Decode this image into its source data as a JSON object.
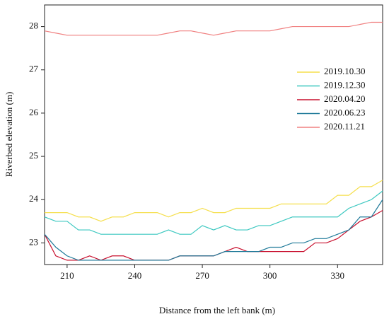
{
  "chart_data": {
    "type": "line",
    "x_label": "Distance from the left bank (m)",
    "y_label": "Riverbed elevation (m)",
    "x": [
      200,
      205,
      210,
      215,
      220,
      225,
      230,
      235,
      240,
      245,
      250,
      255,
      260,
      265,
      270,
      275,
      280,
      285,
      290,
      295,
      300,
      305,
      310,
      315,
      320,
      325,
      330,
      335,
      340,
      345,
      350
    ],
    "series": [
      {
        "name": "2019.10.30",
        "color": "#f5df4d",
        "values": [
          23.7,
          23.7,
          23.7,
          23.6,
          23.6,
          23.5,
          23.6,
          23.6,
          23.7,
          23.7,
          23.7,
          23.6,
          23.7,
          23.7,
          23.8,
          23.7,
          23.7,
          23.8,
          23.8,
          23.8,
          23.8,
          23.9,
          23.9,
          23.9,
          23.9,
          23.9,
          24.1,
          24.1,
          24.3,
          24.3,
          24.45
        ]
      },
      {
        "name": "2019.12.30",
        "color": "#3cc8c0",
        "values": [
          23.6,
          23.5,
          23.5,
          23.3,
          23.3,
          23.2,
          23.2,
          23.2,
          23.2,
          23.2,
          23.2,
          23.3,
          23.2,
          23.2,
          23.4,
          23.3,
          23.4,
          23.3,
          23.3,
          23.4,
          23.4,
          23.5,
          23.6,
          23.6,
          23.6,
          23.6,
          23.6,
          23.8,
          23.9,
          24.0,
          24.2
        ]
      },
      {
        "name": "2020.04.20",
        "color": "#c8102e",
        "values": [
          23.2,
          22.7,
          22.6,
          22.6,
          22.7,
          22.6,
          22.7,
          22.7,
          22.6,
          22.6,
          22.6,
          22.6,
          22.7,
          22.7,
          22.7,
          22.7,
          22.8,
          22.9,
          22.8,
          22.8,
          22.8,
          22.8,
          22.8,
          22.8,
          23.0,
          23.0,
          23.1,
          23.3,
          23.5,
          23.6,
          23.75
        ]
      },
      {
        "name": "2020.06.23",
        "color": "#1f7a99",
        "values": [
          23.2,
          22.9,
          22.7,
          22.6,
          22.6,
          22.6,
          22.6,
          22.6,
          22.6,
          22.6,
          22.6,
          22.6,
          22.7,
          22.7,
          22.7,
          22.7,
          22.8,
          22.8,
          22.8,
          22.8,
          22.9,
          22.9,
          23.0,
          23.0,
          23.1,
          23.1,
          23.2,
          23.3,
          23.6,
          23.6,
          24.0
        ]
      },
      {
        "name": "2020.11.21",
        "color": "#f08080",
        "values": [
          27.9,
          27.85,
          27.8,
          27.8,
          27.8,
          27.8,
          27.8,
          27.8,
          27.8,
          27.8,
          27.8,
          27.85,
          27.9,
          27.9,
          27.85,
          27.8,
          27.85,
          27.9,
          27.9,
          27.9,
          27.9,
          27.95,
          28.0,
          28.0,
          28.0,
          28.0,
          28.0,
          28.0,
          28.05,
          28.1,
          28.1
        ]
      }
    ],
    "xlim": [
      200,
      350
    ],
    "xticks": [
      210,
      240,
      270,
      300,
      330
    ],
    "ylim": [
      22.5,
      28.5
    ],
    "yticks": [
      23,
      24,
      25,
      26,
      27,
      28
    ],
    "legend": "right"
  }
}
